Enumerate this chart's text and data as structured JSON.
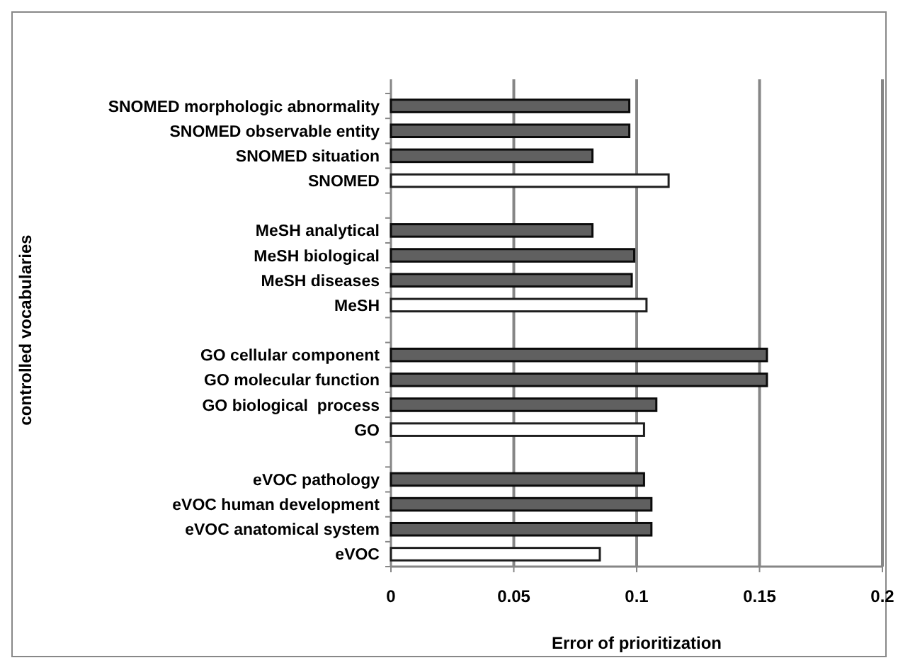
{
  "chart_data": {
    "type": "bar",
    "orientation": "horizontal",
    "xlabel": "Error of prioritization",
    "ylabel": "controlled vocabularies",
    "categories": [
      "SNOMED morphologic abnormality",
      "SNOMED observable entity",
      "SNOMED situation",
      "SNOMED",
      null,
      "MeSH analytical",
      "MeSH biological",
      "MeSH diseases",
      "MeSH",
      null,
      "GO cellular component",
      "GO molecular function",
      "GO biological  process",
      "GO",
      null,
      "eVOC pathology",
      "eVOC human development",
      "eVOC anatomical system",
      "eVOC"
    ],
    "values": [
      0.097,
      0.097,
      0.082,
      0.113,
      null,
      0.082,
      0.099,
      0.098,
      0.104,
      null,
      0.153,
      0.153,
      0.108,
      0.103,
      null,
      0.103,
      0.106,
      0.106,
      0.085
    ],
    "colors": [
      "#606060",
      "#606060",
      "#606060",
      "#ffffff",
      null,
      "#606060",
      "#606060",
      "#606060",
      "#ffffff",
      null,
      "#606060",
      "#606060",
      "#606060",
      "#ffffff",
      null,
      "#606060",
      "#606060",
      "#606060",
      "#ffffff"
    ],
    "xlim": [
      0,
      0.2
    ],
    "xticks": [
      0,
      0.05,
      0.1,
      0.15,
      0.2
    ],
    "grid": "x"
  }
}
